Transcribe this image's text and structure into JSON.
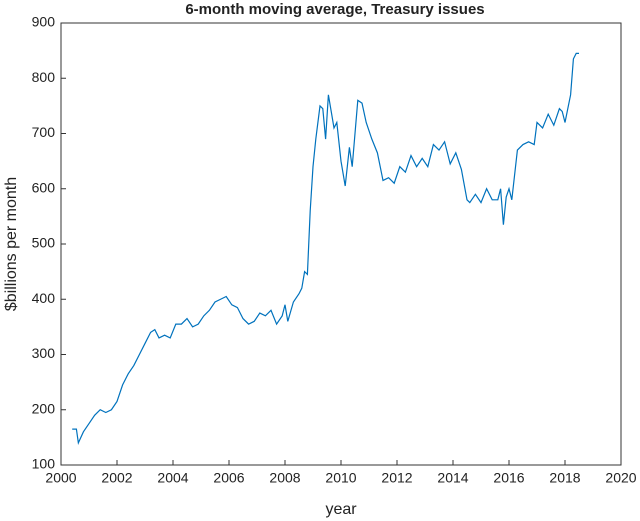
{
  "chart_data": {
    "type": "line",
    "title": "6-month moving average, Treasury issues",
    "x_label": "year",
    "y_label": "$billions per month",
    "xlim": [
      2000,
      2020
    ],
    "xticks": [
      2000,
      2002,
      2004,
      2006,
      2008,
      2010,
      2012,
      2014,
      2016,
      2018,
      2020
    ],
    "ylim": [
      100,
      900
    ],
    "yticks": [
      100,
      200,
      300,
      400,
      500,
      600,
      700,
      800,
      900
    ],
    "grid": false,
    "series": [
      {
        "color": "#0072bd",
        "x": [
          2000.4,
          2000.55,
          2000.62,
          2000.8,
          2001.0,
          2001.2,
          2001.4,
          2001.6,
          2001.8,
          2002.0,
          2002.2,
          2002.4,
          2002.6,
          2002.8,
          2003.0,
          2003.2,
          2003.35,
          2003.5,
          2003.7,
          2003.9,
          2004.1,
          2004.3,
          2004.5,
          2004.7,
          2004.9,
          2005.1,
          2005.3,
          2005.5,
          2005.7,
          2005.9,
          2006.1,
          2006.3,
          2006.5,
          2006.7,
          2006.9,
          2007.1,
          2007.3,
          2007.5,
          2007.7,
          2007.9,
          2008.0,
          2008.1,
          2008.3,
          2008.5,
          2008.6,
          2008.7,
          2008.8,
          2008.9,
          2009.0,
          2009.1,
          2009.25,
          2009.35,
          2009.45,
          2009.55,
          2009.65,
          2009.75,
          2009.85,
          2010.0,
          2010.15,
          2010.3,
          2010.4,
          2010.5,
          2010.6,
          2010.75,
          2010.9,
          2011.1,
          2011.3,
          2011.5,
          2011.7,
          2011.9,
          2012.1,
          2012.3,
          2012.5,
          2012.7,
          2012.9,
          2013.1,
          2013.3,
          2013.5,
          2013.7,
          2013.9,
          2014.1,
          2014.3,
          2014.5,
          2014.6,
          2014.8,
          2015.0,
          2015.2,
          2015.4,
          2015.6,
          2015.7,
          2015.8,
          2015.9,
          2016.0,
          2016.1,
          2016.3,
          2016.5,
          2016.7,
          2016.9,
          2017.0,
          2017.2,
          2017.4,
          2017.6,
          2017.8,
          2017.9,
          2018.0,
          2018.1,
          2018.2,
          2018.3,
          2018.4,
          2018.5
        ],
        "values": [
          165,
          165,
          140,
          160,
          175,
          190,
          200,
          195,
          200,
          215,
          245,
          265,
          280,
          300,
          320,
          340,
          345,
          330,
          335,
          330,
          355,
          355,
          365,
          350,
          355,
          370,
          380,
          395,
          400,
          405,
          390,
          385,
          365,
          355,
          360,
          375,
          370,
          380,
          355,
          370,
          390,
          360,
          395,
          410,
          420,
          450,
          445,
          560,
          640,
          690,
          750,
          745,
          690,
          770,
          740,
          710,
          720,
          650,
          605,
          675,
          640,
          700,
          760,
          755,
          720,
          690,
          665,
          615,
          620,
          610,
          640,
          630,
          660,
          640,
          655,
          640,
          680,
          670,
          685,
          645,
          665,
          635,
          580,
          575,
          590,
          575,
          600,
          580,
          580,
          600,
          535,
          585,
          600,
          580,
          670,
          680,
          685,
          680,
          720,
          710,
          735,
          715,
          745,
          740,
          720,
          745,
          770,
          835,
          845,
          845
        ]
      }
    ]
  }
}
